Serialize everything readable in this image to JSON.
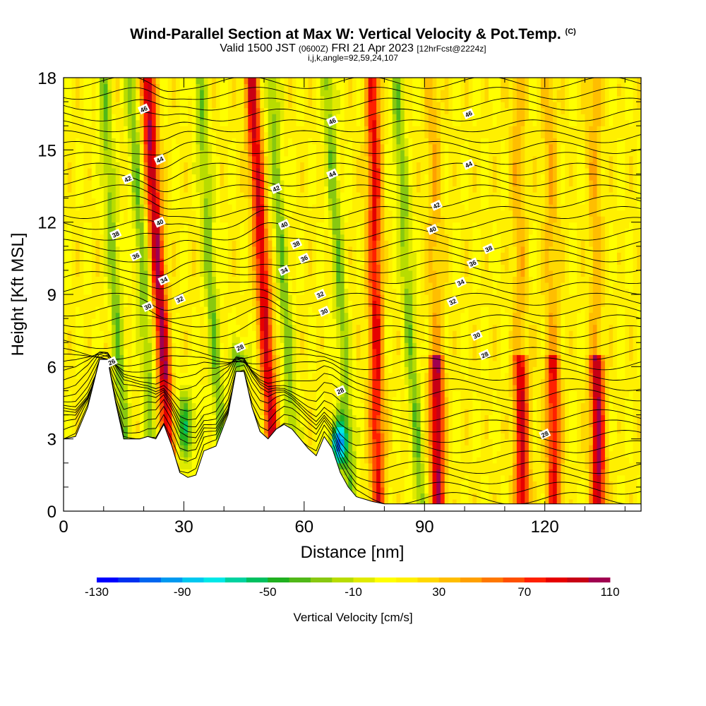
{
  "header": {
    "title": "Wind-Parallel Section at Max W: Vertical Velocity & Pot.Temp.",
    "copyright": "(C)",
    "valid_main": "Valid 1500 JST",
    "valid_zulu": "(0600Z)",
    "valid_date": "FRI 21 Apr 2023",
    "forecast": "[12hrFcst@2224z]",
    "params": "i,j,k,angle=92,59,24,107"
  },
  "chart_data": {
    "type": "heatmap",
    "title": "Wind-Parallel Section at Max W: Vertical Velocity & Pot.Temp.",
    "xlabel": "Distance [nm]",
    "ylabel": "Height [Kft MSL]",
    "xlim": [
      0,
      144
    ],
    "ylim": [
      0,
      18
    ],
    "x_ticks": [
      "0",
      "30",
      "60",
      "90",
      "120"
    ],
    "y_ticks": [
      "0",
      "3",
      "6",
      "9",
      "12",
      "15",
      "18"
    ],
    "colorbar": {
      "label": "Vertical Velocity [cm/s]",
      "min": -130,
      "max": 110,
      "step": 10,
      "tick_labels": [
        "-130",
        "-90",
        "-50",
        "-10",
        "30",
        "70",
        "110"
      ],
      "colors": [
        "#0000ff",
        "#0030f0",
        "#0066f0",
        "#0099f0",
        "#00c8f0",
        "#00e8e8",
        "#00d2a0",
        "#00c060",
        "#20b020",
        "#50b818",
        "#88c810",
        "#b8dc00",
        "#e0ea00",
        "#ffff00",
        "#fff000",
        "#ffd800",
        "#ffbe00",
        "#ffa000",
        "#ff7800",
        "#ff5000",
        "#ff2000",
        "#e60000",
        "#c80014",
        "#a00050",
        "#820082",
        "#5a0096"
      ]
    },
    "theta_contour_labels": [
      "26",
      "28",
      "30",
      "32",
      "34",
      "36",
      "38",
      "40",
      "42",
      "44",
      "46"
    ],
    "updraft_columns_nm": [
      25,
      51,
      78,
      93,
      114,
      122,
      133
    ],
    "downdraft_columns_nm": [
      14,
      21,
      38,
      56,
      70,
      87
    ],
    "max_updraft_cm_s": 90,
    "max_downdraft_cm_s": -110
  }
}
